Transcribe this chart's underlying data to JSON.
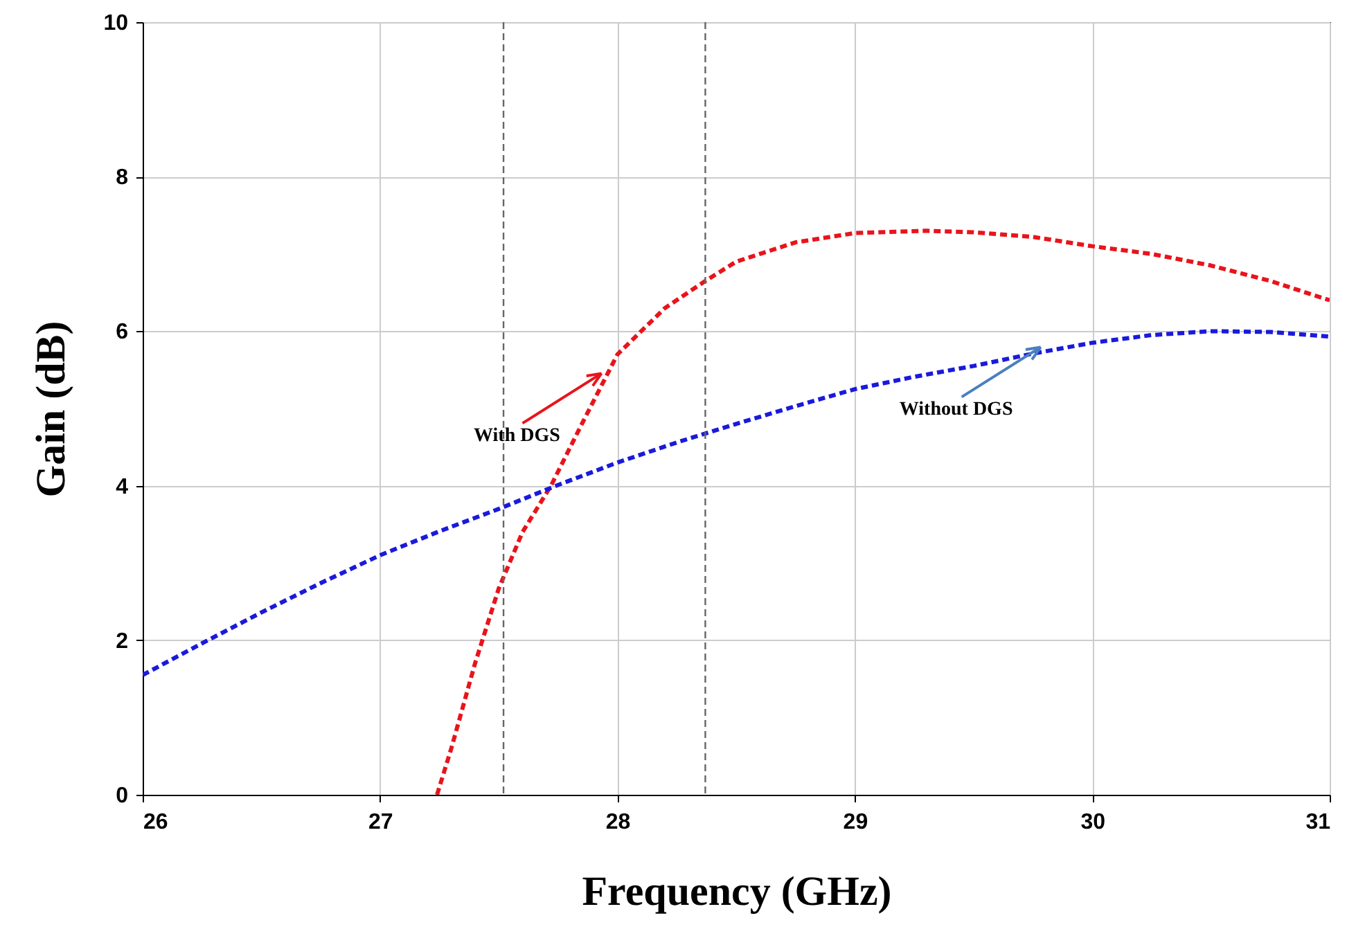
{
  "chart_data": {
    "type": "line",
    "xlabel": "Frequency (GHz)",
    "ylabel": "Gain (dB)",
    "xlim": [
      26,
      31
    ],
    "ylim": [
      0,
      10
    ],
    "xticks": [
      26,
      27,
      28,
      29,
      30,
      31
    ],
    "yticks": [
      0,
      2,
      4,
      6,
      8,
      10
    ],
    "grid": true,
    "line_style": "dashed",
    "marker": "none",
    "series": [
      {
        "color": "#e8141b",
        "x": [
          27.24,
          27.3,
          27.4,
          27.5,
          27.6,
          27.72,
          27.85,
          28,
          28.2,
          28.37,
          28.5,
          28.75,
          29,
          29.3,
          29.5,
          29.75,
          30,
          30.25,
          30.5,
          30.75,
          31
        ],
        "values": [
          0,
          0.6,
          1.7,
          2.67,
          3.4,
          4.0,
          4.8,
          5.7,
          6.3,
          6.65,
          6.9,
          7.15,
          7.27,
          7.3,
          7.28,
          7.22,
          7.1,
          7.0,
          6.85,
          6.65,
          6.4
        ]
      },
      {
        "color": "#1a1adb",
        "x": [
          26,
          26.25,
          26.5,
          26.75,
          27,
          27.25,
          27.5,
          27.75,
          28,
          28.25,
          28.5,
          28.75,
          29,
          29.25,
          29.5,
          29.75,
          30,
          30.25,
          30.5,
          30.75,
          31
        ],
        "values": [
          1.55,
          1.96,
          2.36,
          2.74,
          3.1,
          3.41,
          3.7,
          4.01,
          4.3,
          4.56,
          4.8,
          5.03,
          5.25,
          5.41,
          5.55,
          5.71,
          5.85,
          5.95,
          6.0,
          5.99,
          5.93
        ]
      }
    ],
    "ref_lines": [
      {
        "axis": "x",
        "value": 27.52,
        "color": "#666666",
        "line_style": "dashed"
      },
      {
        "axis": "x",
        "value": 28.37,
        "color": "#666666",
        "line_style": "dashed"
      }
    ],
    "annotations": [
      {
        "text": "With DGS",
        "x": 27.95,
        "y": 5.4
      },
      {
        "text": "Without DGS",
        "x": 29.8,
        "y": 5.74
      }
    ]
  }
}
